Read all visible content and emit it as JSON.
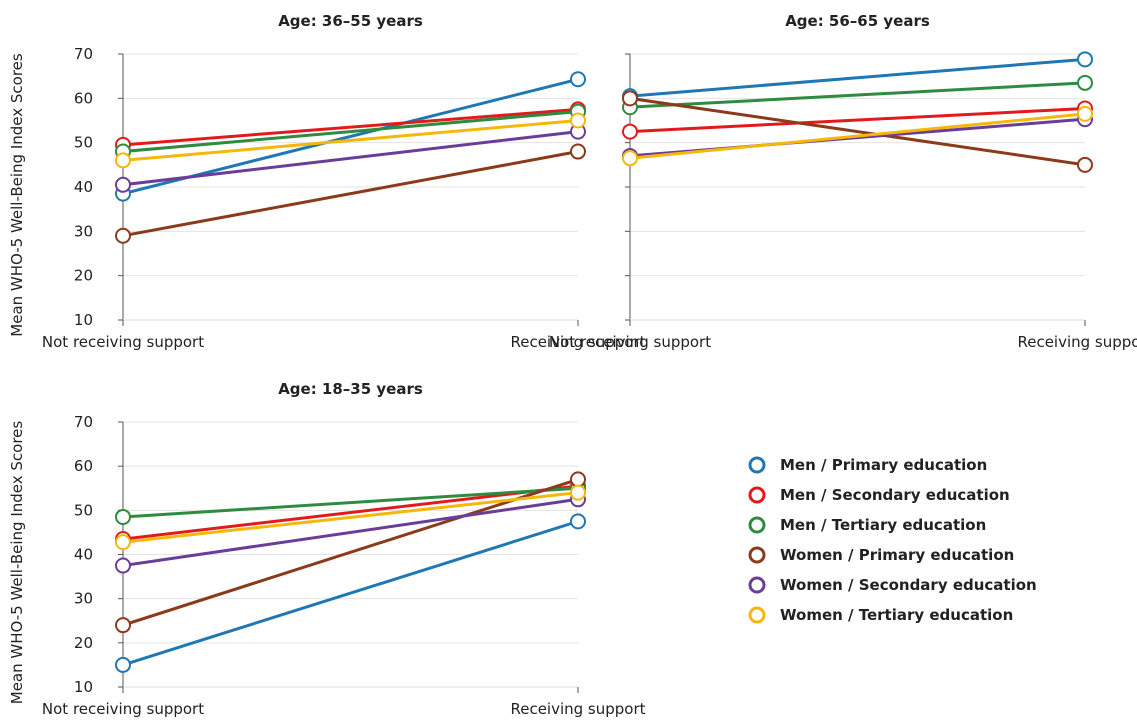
{
  "chart_data": [
    {
      "type": "line",
      "title": "Age: 36–55 years",
      "xlabel": "",
      "ylabel": "Mean WHO-5 Well-Being Index Scores",
      "categories": [
        "Not receiving support",
        "Receiving support"
      ],
      "ylim": [
        10,
        70
      ],
      "yticks": [
        "10",
        "20",
        "30",
        "40",
        "50",
        "60",
        "70"
      ],
      "series": [
        {
          "name": "Men / Primary education",
          "values": [
            38.5,
            64.3
          ]
        },
        {
          "name": "Men / Secondary education",
          "values": [
            49.5,
            57.5
          ]
        },
        {
          "name": "Men / Tertiary education",
          "values": [
            48.0,
            57.0
          ]
        },
        {
          "name": "Women / Primary education",
          "values": [
            29.0,
            48.0
          ]
        },
        {
          "name": "Women / Secondary education",
          "values": [
            40.5,
            52.5
          ]
        },
        {
          "name": "Women / Tertiary education",
          "values": [
            46.0,
            55.0
          ]
        }
      ]
    },
    {
      "type": "line",
      "title": "Age: 56–65 years",
      "xlabel": "",
      "ylabel": "",
      "categories": [
        "Not receiving support",
        "Receiving support"
      ],
      "ylim": [
        10,
        70
      ],
      "yticks": [],
      "series": [
        {
          "name": "Men / Primary education",
          "values": [
            60.5,
            68.8
          ]
        },
        {
          "name": "Men / Secondary education",
          "values": [
            52.5,
            57.7
          ]
        },
        {
          "name": "Men / Tertiary education",
          "values": [
            58.0,
            63.5
          ]
        },
        {
          "name": "Women / Primary education",
          "values": [
            60.0,
            45.0
          ]
        },
        {
          "name": "Women / Secondary education",
          "values": [
            47.0,
            55.3
          ]
        },
        {
          "name": "Women / Tertiary education",
          "values": [
            46.5,
            56.5
          ]
        }
      ]
    },
    {
      "type": "line",
      "title": "Age: 18–35 years",
      "xlabel": "",
      "ylabel": "Mean WHO-5 Well-Being Index Scores",
      "categories": [
        "Not receiving support",
        "Receiving support"
      ],
      "ylim": [
        10,
        70
      ],
      "yticks": [
        "10",
        "20",
        "30",
        "40",
        "50",
        "60",
        "70"
      ],
      "series": [
        {
          "name": "Men / Primary education",
          "values": [
            15.0,
            47.5
          ]
        },
        {
          "name": "Men / Secondary education",
          "values": [
            43.5,
            55.5
          ]
        },
        {
          "name": "Men / Tertiary education",
          "values": [
            48.5,
            55.0
          ]
        },
        {
          "name": "Women / Primary education",
          "values": [
            24.0,
            57.0
          ]
        },
        {
          "name": "Women / Secondary education",
          "values": [
            37.5,
            52.5
          ]
        },
        {
          "name": "Women / Tertiary education",
          "values": [
            42.8,
            54.0
          ]
        }
      ]
    }
  ],
  "legend": {
    "placement": "right",
    "entries": [
      {
        "label": "Men / Primary education",
        "color": "#1f77b4"
      },
      {
        "label": "Men / Secondary education",
        "color": "#e31a1c"
      },
      {
        "label": "Men / Tertiary education",
        "color": "#2e8b3f"
      },
      {
        "label": "Women / Primary education",
        "color": "#8b3a1a"
      },
      {
        "label": "Women / Secondary education",
        "color": "#6a3d9a"
      },
      {
        "label": "Women / Tertiary education",
        "color": "#f5b70a"
      }
    ]
  },
  "colors": [
    "#1f77b4",
    "#e31a1c",
    "#2e8b3f",
    "#8b3a1a",
    "#6a3d9a",
    "#f5b70a"
  ],
  "grid": true
}
